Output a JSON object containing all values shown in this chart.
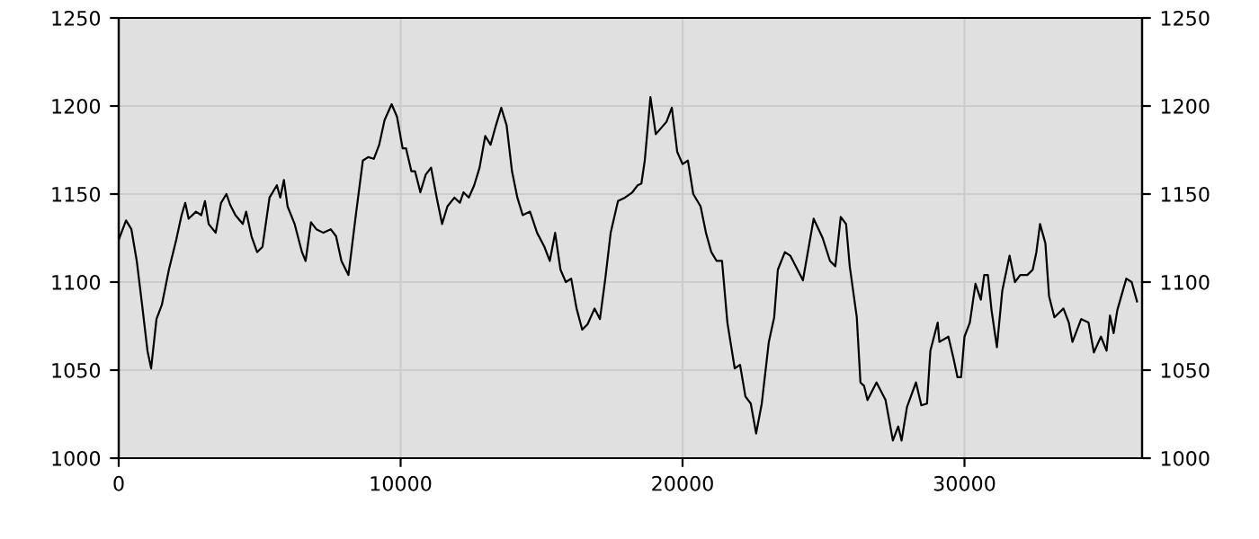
{
  "chart_data": {
    "type": "line",
    "x": [
      0,
      260,
      450,
      640,
      830,
      1020,
      1150,
      1340,
      1530,
      1780,
      2040,
      2230,
      2360,
      2480,
      2740,
      2930,
      3060,
      3190,
      3440,
      3630,
      3820,
      3950,
      4140,
      4400,
      4520,
      4710,
      4910,
      5100,
      5350,
      5610,
      5730,
      5860,
      5990,
      6240,
      6500,
      6630,
      6820,
      7010,
      7260,
      7520,
      7710,
      7900,
      8150,
      8410,
      8660,
      8850,
      9050,
      9240,
      9430,
      9680,
      9870,
      10070,
      10190,
      10380,
      10510,
      10700,
      10890,
      11080,
      11280,
      11470,
      11660,
      11910,
      12100,
      12230,
      12420,
      12610,
      12800,
      13000,
      13190,
      13380,
      13570,
      13760,
      13950,
      14140,
      14330,
      14590,
      14840,
      15100,
      15290,
      15480,
      15670,
      15860,
      16050,
      16240,
      16440,
      16630,
      16880,
      17070,
      17260,
      17450,
      17710,
      17960,
      18220,
      18410,
      18540,
      18660,
      18860,
      19050,
      19430,
      19620,
      19810,
      20000,
      20190,
      20380,
      20640,
      20830,
      21020,
      21210,
      21400,
      21590,
      21850,
      22040,
      22230,
      22420,
      22610,
      22810,
      23060,
      23250,
      23380,
      23630,
      23820,
      24270,
      24650,
      24970,
      25230,
      25420,
      25610,
      25800,
      25930,
      26180,
      26310,
      26440,
      26560,
      26880,
      27200,
      27460,
      27650,
      27770,
      27960,
      28280,
      28470,
      28670,
      28790,
      29050,
      29110,
      29430,
      29620,
      29750,
      29880,
      30000,
      30190,
      30390,
      30580,
      30700,
      30830,
      30960,
      31150,
      31340,
      31600,
      31790,
      31980,
      32230,
      32420,
      32550,
      32680,
      32870,
      33000,
      33190,
      33510,
      33700,
      33830,
      34140,
      34400,
      34590,
      34840,
      35040,
      35160,
      35290,
      35420,
      35740,
      35930,
      36120
    ],
    "values": [
      1124,
      1135,
      1130,
      1112,
      1087,
      1061,
      1051,
      1079,
      1087,
      1107,
      1124,
      1138,
      1145,
      1136,
      1140,
      1138,
      1146,
      1133,
      1128,
      1145,
      1150,
      1144,
      1138,
      1133,
      1140,
      1126,
      1117,
      1120,
      1148,
      1155,
      1148,
      1158,
      1143,
      1133,
      1117,
      1112,
      1134,
      1130,
      1128,
      1130,
      1126,
      1112,
      1104,
      1138,
      1169,
      1171,
      1170,
      1178,
      1192,
      1201,
      1194,
      1176,
      1176,
      1163,
      1163,
      1151,
      1161,
      1165,
      1148,
      1133,
      1143,
      1148,
      1145,
      1151,
      1148,
      1155,
      1165,
      1183,
      1178,
      1189,
      1199,
      1189,
      1163,
      1148,
      1138,
      1140,
      1128,
      1120,
      1112,
      1128,
      1107,
      1100,
      1102,
      1085,
      1073,
      1076,
      1085,
      1079,
      1102,
      1128,
      1146,
      1148,
      1151,
      1155,
      1156,
      1169,
      1205,
      1184,
      1191,
      1199,
      1174,
      1167,
      1169,
      1150,
      1143,
      1128,
      1117,
      1112,
      1112,
      1077,
      1051,
      1053,
      1035,
      1031,
      1014,
      1031,
      1066,
      1080,
      1107,
      1117,
      1115,
      1101,
      1136,
      1125,
      1112,
      1109,
      1137,
      1133,
      1109,
      1080,
      1043,
      1041,
      1033,
      1043,
      1033,
      1010,
      1018,
      1010,
      1029,
      1043,
      1030,
      1031,
      1061,
      1077,
      1066,
      1069,
      1056,
      1046,
      1046,
      1069,
      1077,
      1099,
      1090,
      1104,
      1104,
      1084,
      1063,
      1095,
      1115,
      1100,
      1104,
      1104,
      1107,
      1117,
      1133,
      1122,
      1092,
      1080,
      1085,
      1077,
      1066,
      1079,
      1077,
      1060,
      1069,
      1061,
      1081,
      1071,
      1084,
      1102,
      1100,
      1089
    ],
    "color": "#000000",
    "xlim": [
      0,
      36300
    ],
    "xticks": [
      0,
      10000,
      20000,
      30000
    ],
    "ylim": [
      1000,
      1250
    ],
    "yticks": [
      1000,
      1050,
      1100,
      1150,
      1200,
      1250
    ],
    "y2lim": [
      1000,
      1250
    ],
    "y2ticks": [
      1000,
      1050,
      1100,
      1150,
      1200,
      1250
    ],
    "grid": true,
    "marker": "none",
    "line_style": "solid"
  }
}
